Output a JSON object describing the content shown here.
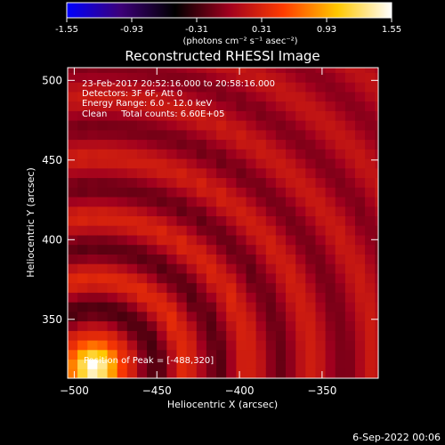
{
  "colorbar": {
    "ticks": [
      "-1.55",
      "-0.93",
      "-0.31",
      "0.31",
      "0.93",
      "1.55"
    ],
    "unit_label": "(photons cm⁻² s⁻¹ asec⁻²)"
  },
  "chart_data": {
    "type": "heatmap",
    "title": "Reconstructed RHESSI Image",
    "xlabel": "Heliocentric X (arcsec)",
    "ylabel": "Heliocentric Y (arcsec)",
    "xlim": [
      -504,
      -316
    ],
    "ylim": [
      313,
      508
    ],
    "xticks": [
      -500,
      -450,
      -400,
      -350
    ],
    "yticks": [
      350,
      400,
      450,
      500
    ],
    "color_range": [
      -1.55,
      1.55
    ],
    "colormap": [
      "#0000ff",
      "#3c0078",
      "#000000",
      "#a0001e",
      "#ff3c00",
      "#ffc800",
      "#ffffff"
    ],
    "peak": {
      "x": -488,
      "y": 320
    },
    "annotations": [
      "23-Feb-2017 20:52:16.000 to 20:58:16.000",
      "Detectors: 3F 6F, Att 0",
      "Energy Range: 6.0 - 12.0 keV",
      "Clean     Total counts: 6.60E+05"
    ],
    "peak_label": "Position of Peak = [-488,320]"
  },
  "footer": {
    "date": "6-Sep-2022 00:06"
  }
}
